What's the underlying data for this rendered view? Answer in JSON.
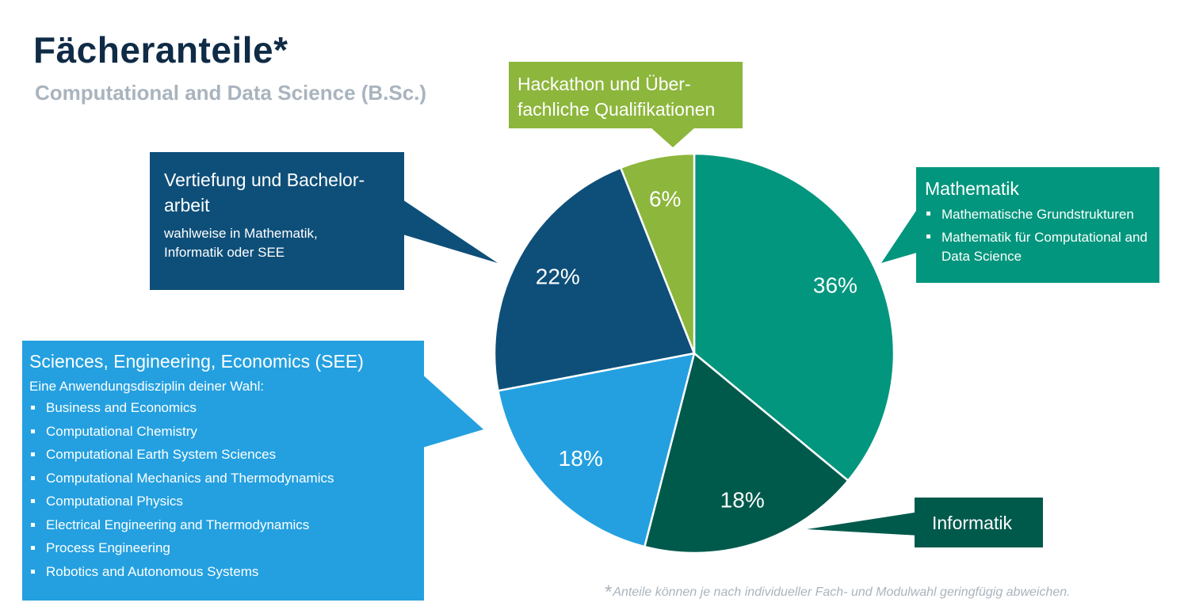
{
  "page": {
    "title": "Fächeranteile*",
    "subtitle": "Computational and Data Science (B.Sc.)",
    "footnote_mark": "*",
    "footnote": "Anteile können je nach individueller Fach- und Modulwahl geringfügig abweichen."
  },
  "boxes": {
    "hackathon": {
      "line1": "Hackathon und Über-",
      "line2": "fachliche Qualifikationen"
    },
    "vertiefung": {
      "title": "Vertiefung und Bachelor-arbeit",
      "desc": "wahlweise in Mathematik, Informatik oder SEE"
    },
    "mathematik": {
      "title": "Mathematik",
      "items": [
        "Mathematische Grundstrukturen",
        "Mathematik für Computational and Data Science"
      ]
    },
    "see": {
      "title": "Sciences, Engineering, Economics (SEE)",
      "desc": "Eine Anwendungsdisziplin deiner Wahl:",
      "items": [
        "Business and Economics",
        "Computational Chemistry",
        "Computational Earth System Sciences",
        "Computational Mechanics and Thermodynamics",
        "Computational Physics",
        "Electrical Engineering and Thermodynamics",
        "Process Engineering",
        "Robotics and Autonomous Systems"
      ]
    },
    "informatik": {
      "title": "Informatik"
    }
  },
  "colors": {
    "mathematik": "#01967d",
    "informatik": "#005a4c",
    "see": "#24a0e0",
    "vertiefung": "#0e4f79",
    "hackathon": "#8db63c"
  },
  "chart_data": {
    "type": "pie",
    "title": "Fächeranteile*",
    "subtitle": "Computational and Data Science (B.Sc.)",
    "start": "12 o'clock",
    "direction": "clockwise",
    "slices": [
      {
        "key": "mathematik",
        "label": "Mathematik",
        "value": 36,
        "display": "36%"
      },
      {
        "key": "informatik",
        "label": "Informatik",
        "value": 18,
        "display": "18%"
      },
      {
        "key": "see",
        "label": "Sciences, Engineering, Economics (SEE)",
        "value": 18,
        "display": "18%"
      },
      {
        "key": "vertiefung",
        "label": "Vertiefung und Bachelorarbeit",
        "value": 22,
        "display": "22%"
      },
      {
        "key": "hackathon",
        "label": "Hackathon und Überfachliche Qualifikationen",
        "value": 6,
        "display": "6%"
      }
    ]
  }
}
